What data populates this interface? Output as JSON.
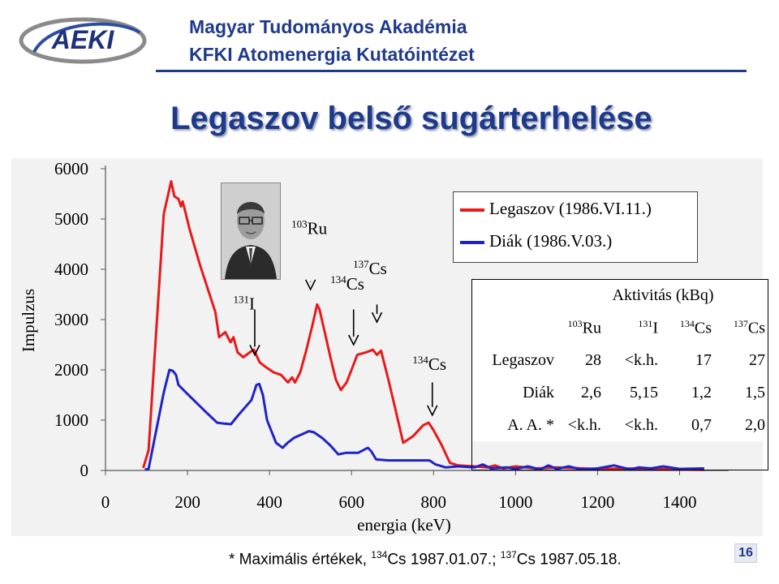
{
  "header": {
    "logo_text": "AEKI",
    "line1": "Magyar Tudományos Akadémia",
    "line2": "KFKI Atomenergia Kutatóintézet"
  },
  "slide": {
    "title": "Legaszov belső sugárterhelése",
    "page_number": "16",
    "footnote": {
      "prefix": "* Maximális értékek, ",
      "iso1_mass": "134",
      "iso1_el": "Cs",
      "part2": " 1987.01.07.; ",
      "iso2_mass": "137",
      "iso2_el": "Cs",
      "part3": " 1987.05.18."
    }
  },
  "colors": {
    "legaszov": "#e8191b",
    "diak": "#1f22c8",
    "title": "#1f3a8a"
  },
  "photo": {
    "subject": "portrait-photo"
  },
  "chart_data": {
    "type": "line",
    "xlabel": "energia (keV)",
    "ylabel": "Impulzus",
    "xlim": [
      0,
      1500
    ],
    "ylim": [
      0,
      6000
    ],
    "xticks": [
      0,
      200,
      400,
      600,
      800,
      1000,
      1200,
      1400
    ],
    "yticks": [
      0,
      1000,
      2000,
      3000,
      4000,
      5000,
      6000
    ],
    "grid": false,
    "legend_position": "top-right",
    "series": [
      {
        "name": "Legaszov (1986.VI.11.)",
        "color": "#e8191b",
        "points": [
          [
            92,
            50
          ],
          [
            105,
            400
          ],
          [
            142,
            5100
          ],
          [
            160,
            5750
          ],
          [
            168,
            5450
          ],
          [
            178,
            5400
          ],
          [
            184,
            5250
          ],
          [
            188,
            5350
          ],
          [
            193,
            5200
          ],
          [
            205,
            4800
          ],
          [
            230,
            4100
          ],
          [
            268,
            3150
          ],
          [
            277,
            2650
          ],
          [
            292,
            2750
          ],
          [
            305,
            2550
          ],
          [
            312,
            2650
          ],
          [
            322,
            2350
          ],
          [
            336,
            2250
          ],
          [
            352,
            2350
          ],
          [
            362,
            2400
          ],
          [
            376,
            2150
          ],
          [
            392,
            2050
          ],
          [
            410,
            1950
          ],
          [
            428,
            1900
          ],
          [
            445,
            1750
          ],
          [
            455,
            1850
          ],
          [
            462,
            1750
          ],
          [
            475,
            1950
          ],
          [
            490,
            2400
          ],
          [
            505,
            2900
          ],
          [
            516,
            3300
          ],
          [
            522,
            3200
          ],
          [
            536,
            2700
          ],
          [
            550,
            2200
          ],
          [
            562,
            1800
          ],
          [
            574,
            1600
          ],
          [
            588,
            1750
          ],
          [
            600,
            2000
          ],
          [
            614,
            2300
          ],
          [
            636,
            2350
          ],
          [
            652,
            2400
          ],
          [
            662,
            2300
          ],
          [
            672,
            2380
          ],
          [
            690,
            1800
          ],
          [
            706,
            1250
          ],
          [
            726,
            550
          ],
          [
            750,
            680
          ],
          [
            775,
            900
          ],
          [
            788,
            950
          ],
          [
            800,
            800
          ],
          [
            820,
            500
          ],
          [
            840,
            150
          ],
          [
            860,
            100
          ],
          [
            900,
            80
          ],
          [
            930,
            60
          ],
          [
            950,
            100
          ],
          [
            970,
            40
          ],
          [
            1000,
            80
          ],
          [
            1050,
            40
          ],
          [
            1100,
            60
          ],
          [
            1200,
            30
          ],
          [
            1300,
            40
          ],
          [
            1400,
            20
          ],
          [
            1460,
            10
          ]
        ]
      },
      {
        "name": "Diák (1986.V.03.)",
        "color": "#1f22c8",
        "points": [
          [
            96,
            20
          ],
          [
            105,
            30
          ],
          [
            142,
            1550
          ],
          [
            156,
            2000
          ],
          [
            164,
            1980
          ],
          [
            172,
            1900
          ],
          [
            178,
            1700
          ],
          [
            200,
            1520
          ],
          [
            240,
            1200
          ],
          [
            272,
            950
          ],
          [
            290,
            930
          ],
          [
            306,
            920
          ],
          [
            324,
            1100
          ],
          [
            356,
            1400
          ],
          [
            368,
            1700
          ],
          [
            375,
            1720
          ],
          [
            384,
            1500
          ],
          [
            394,
            1000
          ],
          [
            416,
            550
          ],
          [
            432,
            450
          ],
          [
            444,
            550
          ],
          [
            460,
            650
          ],
          [
            496,
            780
          ],
          [
            508,
            760
          ],
          [
            528,
            650
          ],
          [
            548,
            500
          ],
          [
            568,
            320
          ],
          [
            586,
            350
          ],
          [
            616,
            350
          ],
          [
            640,
            450
          ],
          [
            648,
            380
          ],
          [
            660,
            220
          ],
          [
            690,
            200
          ],
          [
            720,
            200
          ],
          [
            760,
            200
          ],
          [
            790,
            200
          ],
          [
            805,
            120
          ],
          [
            830,
            60
          ],
          [
            860,
            80
          ],
          [
            900,
            60
          ],
          [
            920,
            120
          ],
          [
            940,
            40
          ],
          [
            980,
            60
          ],
          [
            1000,
            30
          ],
          [
            1030,
            80
          ],
          [
            1060,
            20
          ],
          [
            1080,
            100
          ],
          [
            1100,
            30
          ],
          [
            1130,
            80
          ],
          [
            1160,
            20
          ],
          [
            1200,
            40
          ],
          [
            1240,
            100
          ],
          [
            1280,
            20
          ],
          [
            1300,
            60
          ],
          [
            1330,
            40
          ],
          [
            1360,
            80
          ],
          [
            1400,
            30
          ],
          [
            1460,
            40
          ]
        ]
      }
    ],
    "annotations": [
      {
        "mass": "103",
        "el": "Ru",
        "x": 500,
        "y_arrow_top": 3750,
        "y_arrow_bottom": 3600,
        "lx": 497,
        "ly": 4700
      },
      {
        "mass": "131",
        "el": "I",
        "x": 364,
        "y_arrow_top": 3200,
        "y_arrow_bottom": 2300,
        "lx": 338,
        "ly": 3200
      },
      {
        "mass": "134",
        "el": "Cs",
        "x": 605,
        "y_arrow_top": 3200,
        "y_arrow_bottom": 2500,
        "lx": 590,
        "ly": 3600
      },
      {
        "mass": "137",
        "el": "Cs",
        "x": 662,
        "y_arrow_top": 3300,
        "y_arrow_bottom": 2950,
        "lx": 645,
        "ly": 3900
      },
      {
        "mass": "134",
        "el": "Cs",
        "x": 797,
        "y_arrow_top": 1750,
        "y_arrow_bottom": 1100,
        "lx": 790,
        "ly": 2000
      }
    ]
  },
  "activity_table": {
    "title": "Aktivitás (kBq)",
    "isotopes": [
      {
        "mass": "103",
        "el": "Ru"
      },
      {
        "mass": "131",
        "el": "I"
      },
      {
        "mass": "134",
        "el": "Cs"
      },
      {
        "mass": "137",
        "el": "Cs"
      }
    ],
    "rows": [
      {
        "label": "Legaszov",
        "values": [
          "28",
          "<k.h.",
          "17",
          "27"
        ]
      },
      {
        "label": "Diák",
        "values": [
          "2,6",
          "5,15",
          "1,2",
          "1,5"
        ]
      },
      {
        "label": "A. A. *",
        "values": [
          "<k.h.",
          "<k.h.",
          "0,7",
          "2,0"
        ]
      }
    ]
  }
}
